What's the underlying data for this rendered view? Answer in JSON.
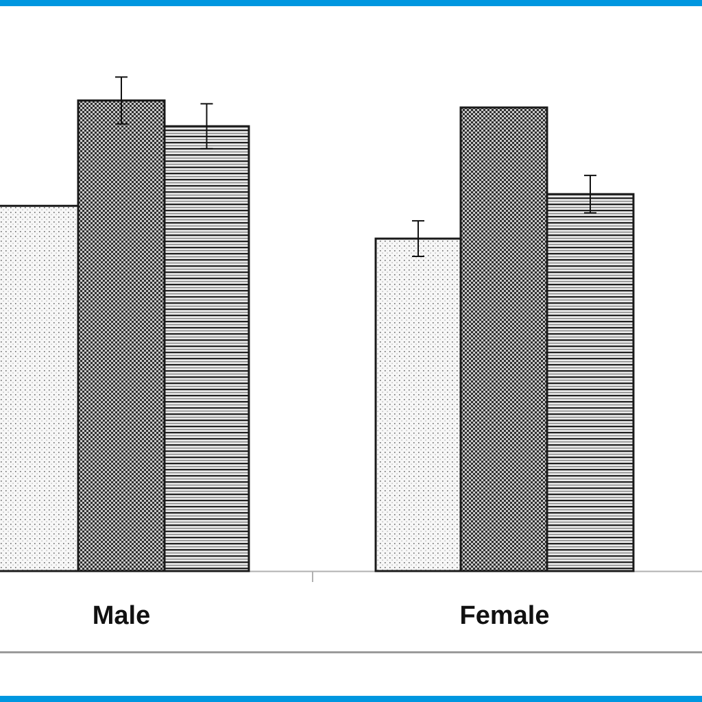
{
  "colors": {
    "accent": "#0097e0",
    "bar_border": "#1a1a1a",
    "axis": "#b0b0b0",
    "rule": "#9a9a9a"
  },
  "chart_data": {
    "type": "bar",
    "title": "",
    "xlabel": "",
    "ylabel": "",
    "ylim": [
      0,
      100
    ],
    "grid": false,
    "legend": "none",
    "categories": [
      "Male",
      "Female"
    ],
    "series": [
      {
        "pattern": "dots",
        "values": [
          78,
          71
        ],
        "errors": [
          null,
          3.8
        ]
      },
      {
        "pattern": "checker",
        "values": [
          100.5,
          99
        ],
        "errors": [
          5,
          null
        ]
      },
      {
        "pattern": "horizontal-lines",
        "values": [
          95,
          80.5
        ],
        "errors": [
          4.8,
          4
        ]
      }
    ]
  }
}
